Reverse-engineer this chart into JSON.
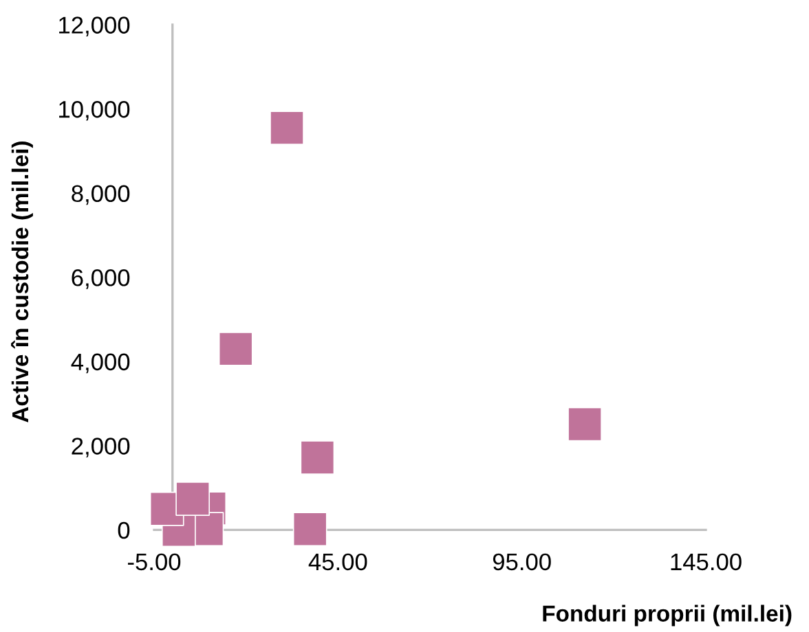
{
  "chart_data": {
    "type": "scatter",
    "xlabel": "Fonduri proprii (mil.lei)",
    "ylabel": "Active în custodie (mil.lei)",
    "x": [
      31.1,
      17.2,
      112.1,
      39.4,
      37.4,
      10.0,
      9.3,
      1.7,
      -1.5,
      5.5
    ],
    "values": [
      9550,
      4300,
      2510,
      1720,
      20,
      510,
      20,
      0,
      500,
      740
    ],
    "color": "#c0739a",
    "marker": "square",
    "grid": false,
    "legend": false,
    "xlim": [
      -5,
      145
    ],
    "xticks": [
      {
        "value": -5,
        "label": "-5.00"
      },
      {
        "value": 45,
        "label": "45.00"
      },
      {
        "value": 95,
        "label": "95.00"
      },
      {
        "value": 145,
        "label": "145.00"
      }
    ],
    "ylim": [
      0,
      12000
    ],
    "yticks": [
      {
        "value": 0,
        "label": "0"
      },
      {
        "value": 2000,
        "label": "2,000"
      },
      {
        "value": 4000,
        "label": "4,000"
      },
      {
        "value": 6000,
        "label": "6,000"
      },
      {
        "value": 8000,
        "label": "8,000"
      },
      {
        "value": 10000,
        "label": "10,000"
      },
      {
        "value": 12000,
        "label": "12,000"
      }
    ]
  }
}
